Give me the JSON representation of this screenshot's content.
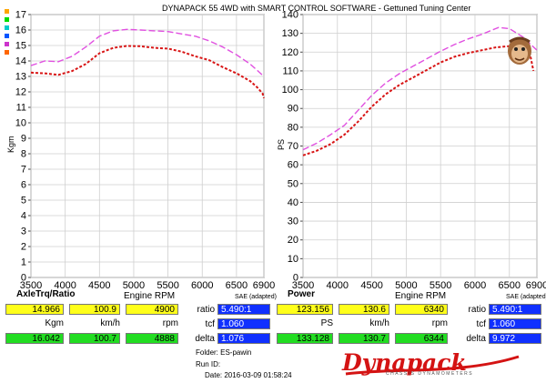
{
  "title": "DYNAPACK 55 4WD with SMART CONTROL SOFTWARE - Gettuned Tuning Center",
  "logo_text": "Dynapack",
  "logo_subtext": "CHASSIS DYNAMOMETERS",
  "colors": {
    "run1": "#d81515",
    "run2": "#e050e0",
    "yellow": "#ffff1a",
    "green": "#22dd22",
    "blue": "#1030ff",
    "swatches": [
      "#ffa500",
      "#00dd00",
      "#00cccc",
      "#0055ff",
      "#cc33cc",
      "#ff6600"
    ]
  },
  "chart_data": [
    {
      "type": "line",
      "title": "AxleTrq/Ratio",
      "xlabel": "Engine RPM",
      "ylabel": "Kgm",
      "xlim": [
        3500,
        6900
      ],
      "ylim": [
        0,
        17
      ],
      "xticks": [
        3500,
        4000,
        4500,
        5000,
        5500,
        6000,
        6500,
        6900
      ],
      "yticks": [
        0,
        1,
        2,
        3,
        4,
        5,
        6,
        7,
        8,
        9,
        10,
        11,
        12,
        13,
        14,
        15,
        16,
        17
      ],
      "grid": true,
      "series": [
        {
          "style": "dashed-red",
          "x": [
            3500,
            3700,
            3900,
            4100,
            4300,
            4500,
            4700,
            4900,
            5100,
            5300,
            5500,
            5700,
            5900,
            6100,
            6300,
            6500,
            6700,
            6800,
            6880,
            6900
          ],
          "y": [
            13.25,
            13.2,
            13.1,
            13.35,
            13.8,
            14.5,
            14.85,
            14.97,
            14.95,
            14.85,
            14.8,
            14.6,
            14.3,
            14.05,
            13.6,
            13.2,
            12.7,
            12.3,
            11.9,
            11.6
          ]
        },
        {
          "style": "dashed-magenta",
          "x": [
            3500,
            3700,
            3900,
            4100,
            4300,
            4500,
            4700,
            4900,
            5100,
            5300,
            5500,
            5700,
            5900,
            6100,
            6300,
            6500,
            6700,
            6800,
            6900
          ],
          "y": [
            13.7,
            14.0,
            13.95,
            14.3,
            14.9,
            15.6,
            15.95,
            16.04,
            16.0,
            15.95,
            15.9,
            15.75,
            15.6,
            15.3,
            14.9,
            14.4,
            13.8,
            13.4,
            13.0
          ]
        }
      ]
    },
    {
      "type": "line",
      "title": "Power",
      "xlabel": "Engine RPM",
      "ylabel": "PS",
      "xlim": [
        3500,
        6900
      ],
      "ylim": [
        0,
        140
      ],
      "xticks": [
        3500,
        4000,
        4500,
        5000,
        5500,
        6000,
        6500,
        6900
      ],
      "yticks": [
        0,
        10,
        20,
        30,
        40,
        50,
        60,
        70,
        80,
        90,
        100,
        110,
        120,
        130,
        140
      ],
      "grid": true,
      "series": [
        {
          "style": "dashed-red",
          "x": [
            3500,
            3700,
            3900,
            4100,
            4300,
            4500,
            4700,
            4900,
            5100,
            5300,
            5500,
            5700,
            5900,
            6100,
            6300,
            6500,
            6700,
            6800,
            6850
          ],
          "y": [
            65,
            67.5,
            71,
            76,
            83,
            91,
            97.5,
            102.5,
            106.5,
            110.5,
            114.5,
            117.5,
            119.5,
            121,
            122.5,
            123.2,
            121,
            119,
            110
          ]
        },
        {
          "style": "dashed-magenta",
          "x": [
            3500,
            3700,
            3900,
            4100,
            4300,
            4500,
            4700,
            4900,
            5100,
            5300,
            5500,
            5700,
            5900,
            6100,
            6300,
            6344,
            6500,
            6700,
            6900
          ],
          "y": [
            68,
            71.5,
            76,
            81,
            89,
            97,
            103.5,
            108.5,
            112.5,
            116.5,
            120.5,
            124,
            127,
            129.5,
            132.5,
            133.1,
            132.5,
            128,
            121
          ]
        }
      ]
    }
  ],
  "panel_torque": {
    "row1": {
      "value": "14.966",
      "speed": "100.9",
      "rpm": "4900"
    },
    "units": {
      "value": "Kgm",
      "speed": "km/h",
      "rpm": "rpm"
    },
    "row2": {
      "value": "16.042",
      "speed": "100.7",
      "rpm": "4888"
    },
    "ratio_label": "ratio",
    "ratio_value": "5.490:1",
    "tcf_label": "tcf",
    "tcf_value": "1.060",
    "delta_label": "delta",
    "delta_value": "1.076",
    "sae_label": "SAE (adapted)"
  },
  "panel_power": {
    "row1": {
      "value": "123.156",
      "speed": "130.6",
      "rpm": "6340"
    },
    "units": {
      "value": "PS",
      "speed": "km/h",
      "rpm": "rpm"
    },
    "row2": {
      "value": "133.128",
      "speed": "130.7",
      "rpm": "6344"
    },
    "ratio_label": "ratio",
    "ratio_value": "5.490:1",
    "tcf_label": "tcf",
    "tcf_value": "1.060",
    "delta_label": "delta",
    "delta_value": "9.972",
    "sae_label": "SAE (adapted)"
  },
  "footer": {
    "folder": "Folder:  ES-pawin",
    "run_id": "Run ID:",
    "date": "Date:  2016-03-09 01:58:24"
  }
}
